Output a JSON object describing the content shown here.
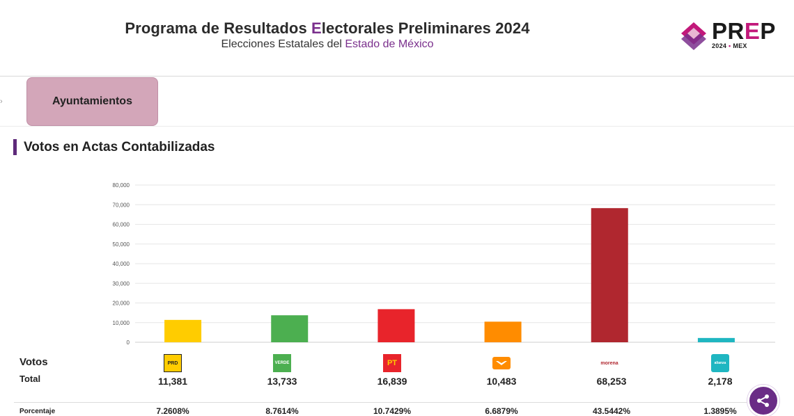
{
  "header": {
    "title_pre": "Programa de Resultados ",
    "title_accent": "E",
    "title_post": "lectorales Preliminares 2024",
    "subtitle_pre": "Elecciones Estatales del ",
    "subtitle_accent": "Estado de México",
    "logo_word_pre": "PR",
    "logo_word_accent": "E",
    "logo_word_post": "P",
    "logo_year": "2024",
    "logo_dot": "•",
    "logo_state": "MEX"
  },
  "tab": {
    "label": "Ayuntamientos"
  },
  "section": {
    "title": "Votos en Actas Contabilizadas"
  },
  "table": {
    "votos_label": "Votos",
    "total_label": "Total",
    "pct_label": "Porcentaje"
  },
  "colors": {
    "accent": "#7a2f8c",
    "tab_bg": "#d3a6b9",
    "share_button": "#6a2c86"
  },
  "chart_data": {
    "type": "bar",
    "categories": [
      "PRD",
      "VERDE",
      "PT",
      "MC",
      "morena",
      "alianza"
    ],
    "values": [
      11381,
      13733,
      16839,
      10483,
      68253,
      2178
    ],
    "colors": [
      "#ffcc00",
      "#4caf50",
      "#e8242b",
      "#ff8c00",
      "#b0272f",
      "#1fb6c1"
    ],
    "ylim": [
      0,
      80000
    ],
    "yticks": [
      "0",
      "10,000",
      "20,000",
      "30,000",
      "40,000",
      "50,000",
      "60,000",
      "70,000",
      "80,000"
    ],
    "grid": true
  },
  "parties": [
    {
      "logo_text": "PRD",
      "votes": "11,381",
      "pct": "7.2608%"
    },
    {
      "logo_text": "VERDE",
      "votes": "13,733",
      "pct": "8.7614%"
    },
    {
      "logo_text": "PT",
      "votes": "16,839",
      "pct": "10.7429%"
    },
    {
      "logo_text": "",
      "votes": "10,483",
      "pct": "6.6879%"
    },
    {
      "logo_text": "morena",
      "votes": "68,253",
      "pct": "43.5442%"
    },
    {
      "logo_text": "alianza",
      "votes": "2,178",
      "pct": "1.3895%"
    }
  ],
  "icons": {
    "share": "share-icon",
    "logo_mark": "prep-logo-mark-icon"
  }
}
